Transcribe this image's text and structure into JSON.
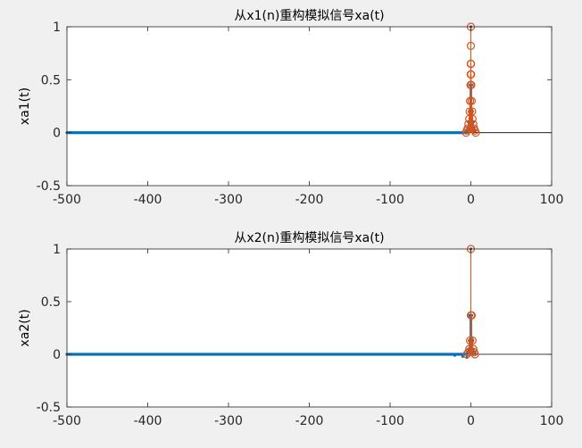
{
  "figure": {
    "background": "#f0f0f0",
    "axes_color": "#262626",
    "stem_color": "#0072bd",
    "marker_color": "#d95319"
  },
  "chart_data": [
    {
      "type": "stem",
      "title": "从x1(n)重构模拟信号xa(t)",
      "xlabel": "",
      "ylabel": "xa1(t)",
      "xlim": [
        -500,
        100
      ],
      "ylim": [
        -0.5,
        1
      ],
      "xticks": [
        -500,
        -400,
        -300,
        -200,
        -100,
        0,
        100
      ],
      "xtick_labels": [
        "-500",
        "-400",
        "-300",
        "-200",
        "-100",
        "0",
        "100"
      ],
      "yticks": [
        -0.5,
        0,
        0.5,
        1
      ],
      "ytick_labels": [
        "-0.5",
        "0",
        "0.5",
        "1"
      ],
      "reconstructed": {
        "x_range": [
          -500,
          5
        ],
        "x_step": 1,
        "values_nonzero": [
          {
            "x": -5,
            "y": 0.02
          },
          {
            "x": -4,
            "y": 0.05
          },
          {
            "x": -3,
            "y": 0.1
          },
          {
            "x": -2,
            "y": 0.2
          },
          {
            "x": -1,
            "y": 0.45
          },
          {
            "x": 0,
            "y": 1.0
          },
          {
            "x": 1,
            "y": 0.45
          },
          {
            "x": 2,
            "y": 0.2
          },
          {
            "x": 3,
            "y": 0.1
          },
          {
            "x": 4,
            "y": 0.05
          },
          {
            "x": 5,
            "y": 0.02
          }
        ]
      },
      "samples": [
        {
          "x": -6,
          "y": 0.0
        },
        {
          "x": -5,
          "y": 0.02
        },
        {
          "x": -4,
          "y": 0.04
        },
        {
          "x": -3,
          "y": 0.08
        },
        {
          "x": -2,
          "y": 0.13
        },
        {
          "x": -1.5,
          "y": 0.2
        },
        {
          "x": -1,
          "y": 0.3
        },
        {
          "x": -0.5,
          "y": 0.45
        },
        {
          "x": -0.3,
          "y": 0.55
        },
        {
          "x": -0.15,
          "y": 0.65
        },
        {
          "x": 0,
          "y": 0.82
        },
        {
          "x": 0,
          "y": 1.0
        },
        {
          "x": 0.15,
          "y": 0.65
        },
        {
          "x": 0.3,
          "y": 0.55
        },
        {
          "x": 0.5,
          "y": 0.45
        },
        {
          "x": 1,
          "y": 0.3
        },
        {
          "x": 1.5,
          "y": 0.2
        },
        {
          "x": 2,
          "y": 0.13
        },
        {
          "x": 3,
          "y": 0.08
        },
        {
          "x": 4,
          "y": 0.04
        },
        {
          "x": 5,
          "y": 0.02
        },
        {
          "x": 6,
          "y": 0.0
        }
      ]
    },
    {
      "type": "stem",
      "title": "从x2(n)重构模拟信号xa(t)",
      "xlabel": "",
      "ylabel": "xa2(t)",
      "xlim": [
        -500,
        100
      ],
      "ylim": [
        -0.5,
        1
      ],
      "xticks": [
        -500,
        -400,
        -300,
        -200,
        -100,
        0,
        100
      ],
      "xtick_labels": [
        "-500",
        "-400",
        "-300",
        "-200",
        "-100",
        "0",
        "100"
      ],
      "yticks": [
        -0.5,
        0,
        0.5,
        1
      ],
      "ytick_labels": [
        "-0.5",
        "0",
        "0.5",
        "1"
      ],
      "reconstructed": {
        "x_range": [
          -500,
          5
        ],
        "x_step": 1,
        "values_nonzero": [
          {
            "x": -20,
            "y": -0.01
          },
          {
            "x": -10,
            "y": -0.02
          },
          {
            "x": -5,
            "y": -0.03
          },
          {
            "x": -4,
            "y": 0.02
          },
          {
            "x": -3,
            "y": 0.05
          },
          {
            "x": -2,
            "y": 0.13
          },
          {
            "x": -1,
            "y": 0.37
          },
          {
            "x": 0,
            "y": 1.0
          },
          {
            "x": 1,
            "y": 0.37
          },
          {
            "x": 2,
            "y": 0.13
          },
          {
            "x": 3,
            "y": 0.05
          },
          {
            "x": 4,
            "y": 0.02
          },
          {
            "x": 5,
            "y": 0.01
          }
        ]
      },
      "samples": [
        {
          "x": -5,
          "y": 0.0
        },
        {
          "x": -3,
          "y": 0.02
        },
        {
          "x": -2,
          "y": 0.05
        },
        {
          "x": -1,
          "y": 0.13
        },
        {
          "x": 0,
          "y": 0.37
        },
        {
          "x": 0,
          "y": 1.0
        },
        {
          "x": 1,
          "y": 0.37
        },
        {
          "x": 2,
          "y": 0.13
        },
        {
          "x": 3,
          "y": 0.05
        },
        {
          "x": 4,
          "y": 0.02
        },
        {
          "x": 5,
          "y": 0.0
        }
      ]
    }
  ]
}
